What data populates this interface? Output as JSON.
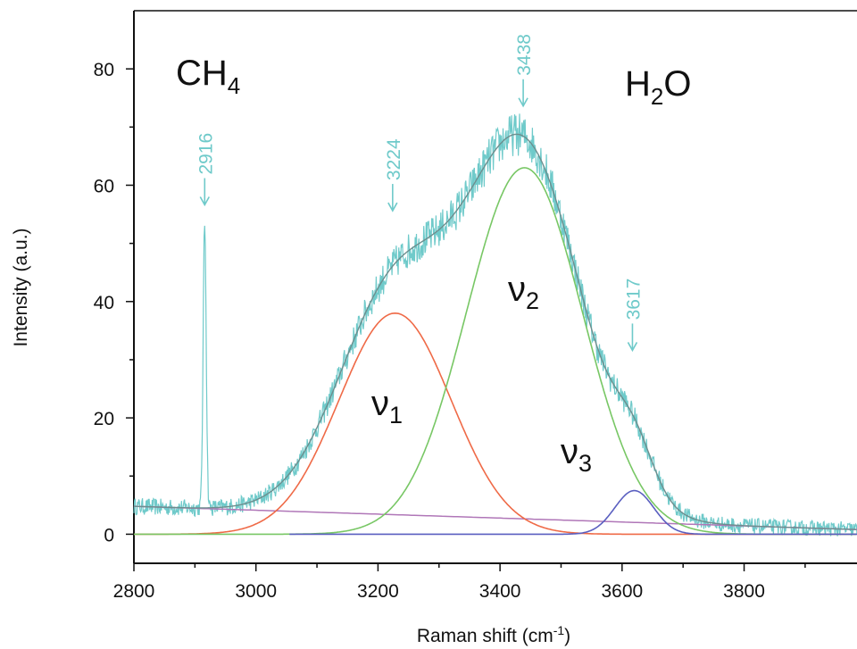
{
  "chart_data": {
    "type": "line",
    "title": "",
    "xlabel": "Raman shift (cm⁻¹)",
    "ylabel": "Intensity (a.u.)",
    "xlim": [
      2800,
      3985
    ],
    "ylim": [
      -5,
      90
    ],
    "xticks": [
      2800,
      3000,
      3200,
      3400,
      3600,
      3800
    ],
    "yticks": [
      0,
      20,
      40,
      60,
      80
    ],
    "grid": false,
    "colors": {
      "spectrum": "#6fcaca",
      "fit": "#6d8e8e",
      "nu1": "#ef6a47",
      "nu2": "#78c765",
      "nu3": "#5a5fc0",
      "baseline": "#b077b8",
      "annotation": "#6fcaca"
    },
    "labels": {
      "ch4": "CH",
      "ch4_sub": "4",
      "h2o": "H",
      "h2o_sub": "2",
      "h2o_tail": "O",
      "nu": "ν",
      "nu1_sub": "1",
      "nu2_sub": "2",
      "nu3_sub": "3"
    },
    "peaks": [
      {
        "label": "2916",
        "x": 2916,
        "arrow_y": 56
      },
      {
        "label": "3224",
        "x": 3224,
        "arrow_y": 55
      },
      {
        "label": "3438",
        "x": 3438,
        "arrow_y": 73
      },
      {
        "label": "3617",
        "x": 3617,
        "arrow_y": 31
      }
    ],
    "series": [
      {
        "key": "nu1",
        "type": "gaussian",
        "center": 3228,
        "amplitude": 38,
        "sigma": 92,
        "x_range": [
          2800,
          3985
        ]
      },
      {
        "key": "nu2",
        "type": "gaussian",
        "center": 3440,
        "amplitude": 63,
        "sigma": 95,
        "x_range": [
          2800,
          3985
        ]
      },
      {
        "key": "nu3",
        "type": "gaussian",
        "center": 3620,
        "amplitude": 7.5,
        "sigma": 32,
        "x_range": [
          3055,
          3985
        ]
      },
      {
        "key": "baseline",
        "type": "linear",
        "x": [
          2800,
          3985
        ],
        "y": [
          4.8,
          0.8
        ]
      },
      {
        "key": "fit",
        "type": "sum_of_components"
      },
      {
        "key": "spectrum",
        "type": "noisy_measurement",
        "methane_peak": {
          "center": 2916,
          "height": 49,
          "width": 2.5
        }
      }
    ]
  }
}
